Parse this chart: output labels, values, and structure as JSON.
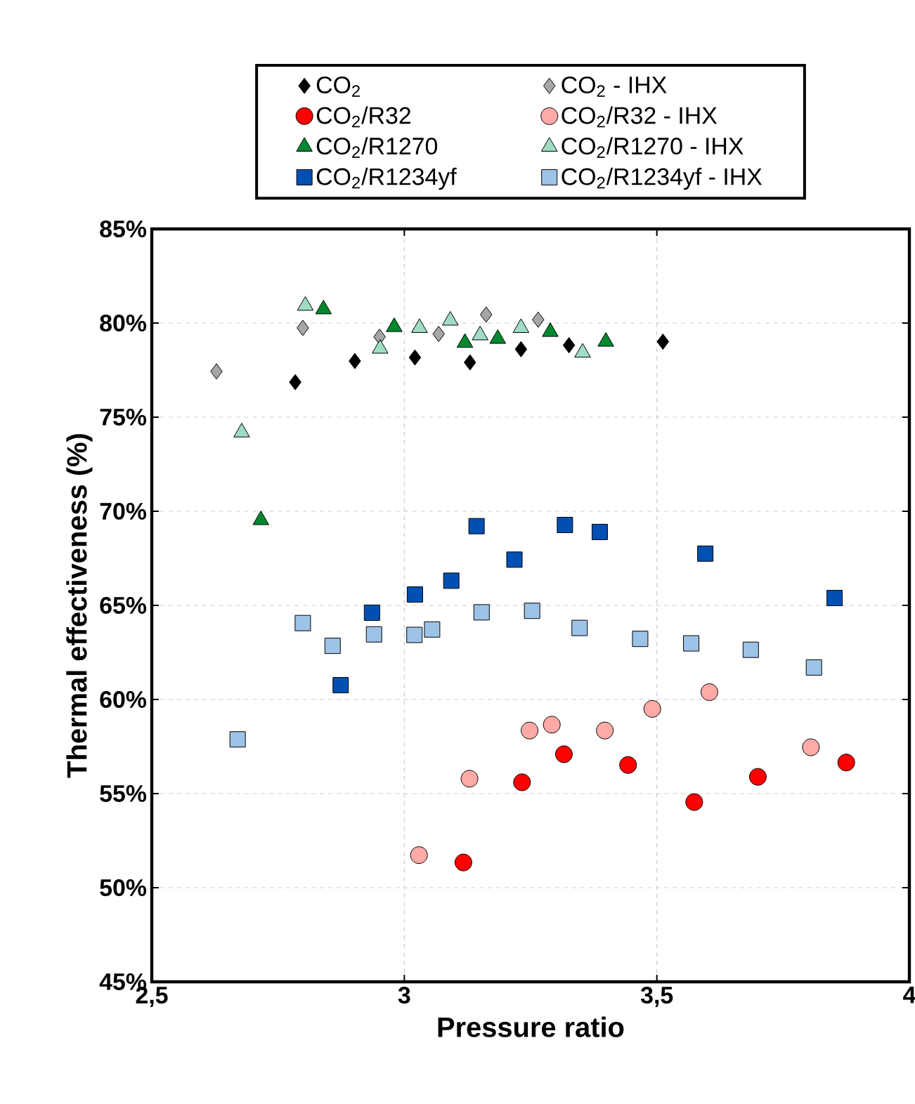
{
  "chart_data": {
    "type": "scatter",
    "xlabel": "Pressure ratio",
    "ylabel": "Thermal effectiveness (%)",
    "xlim": [
      2.5,
      4
    ],
    "ylim": [
      45,
      85
    ],
    "xticks": [
      {
        "value": 2.5,
        "label": "2,5"
      },
      {
        "value": 3,
        "label": "3"
      },
      {
        "value": 3.5,
        "label": "3,5"
      },
      {
        "value": 4,
        "label": "4"
      }
    ],
    "yticks": [
      {
        "value": 45,
        "label": "45%"
      },
      {
        "value": 50,
        "label": "50%"
      },
      {
        "value": 55,
        "label": "55%"
      },
      {
        "value": 60,
        "label": "60%"
      },
      {
        "value": 65,
        "label": "65%"
      },
      {
        "value": 70,
        "label": "70%"
      },
      {
        "value": 75,
        "label": "75%"
      },
      {
        "value": 80,
        "label": "80%"
      },
      {
        "value": 85,
        "label": "85%"
      }
    ],
    "grid": true,
    "legend": "top",
    "series": [
      {
        "name": "CO$_{2}$",
        "color": "#000000",
        "marker": "diamond",
        "x": [
          2.784,
          2.902,
          3.021,
          3.13,
          3.231,
          3.326,
          3.512
        ],
        "values": [
          76.86,
          77.98,
          78.17,
          77.91,
          78.61,
          78.82,
          79.01
        ]
      },
      {
        "name": "CO$_{2}$ - IHX",
        "color": "#a6a6a6",
        "marker": "diamond",
        "x": [
          2.628,
          2.799,
          2.951,
          3.068,
          3.162,
          3.265
        ],
        "values": [
          77.43,
          79.74,
          79.27,
          79.42,
          80.45,
          80.18
        ]
      },
      {
        "name": "CO$_{2}$/R32",
        "color": "#ff0000",
        "marker": "circle",
        "x": [
          3.117,
          3.233,
          3.316,
          3.443,
          3.574,
          3.7,
          3.875
        ],
        "values": [
          51.34,
          55.6,
          57.09,
          56.52,
          54.55,
          55.89,
          56.65
        ]
      },
      {
        "name": "CO$_{2}$/R32 - IHX",
        "color": "#ffaaa6",
        "marker": "circle",
        "x": [
          3.029,
          3.129,
          3.248,
          3.292,
          3.397,
          3.491,
          3.604,
          3.805
        ],
        "values": [
          51.73,
          55.79,
          58.35,
          58.66,
          58.35,
          59.5,
          60.39,
          57.46
        ]
      },
      {
        "name": "CO$_{2}$/R1270",
        "color": "#00882e",
        "marker": "triangle",
        "x": [
          2.716,
          2.84,
          2.98,
          3.12,
          3.185,
          3.289,
          3.399
        ],
        "values": [
          69.53,
          80.73,
          79.79,
          78.95,
          79.16,
          79.53,
          79.01
        ]
      },
      {
        "name": "CO$_{2}$/R1270 - IHX",
        "color": "#9fdcc4",
        "marker": "triangle",
        "x": [
          2.678,
          2.804,
          2.952,
          3.03,
          3.091,
          3.15,
          3.231,
          3.353
        ],
        "values": [
          74.19,
          80.92,
          78.64,
          79.74,
          80.13,
          79.35,
          79.74,
          78.43
        ]
      },
      {
        "name": "CO$_{2}$/R1234yf",
        "color": "#0050b4",
        "marker": "square",
        "x": [
          2.874,
          2.936,
          3.021,
          3.093,
          3.143,
          3.218,
          3.318,
          3.387,
          3.596,
          3.852
        ],
        "values": [
          60.76,
          64.61,
          65.58,
          66.31,
          69.21,
          67.43,
          69.27,
          68.9,
          67.75,
          65.39
        ]
      },
      {
        "name": "CO$_{2}$/R1234yf - IHX",
        "color": "#9dc3e6",
        "marker": "square",
        "x": [
          2.67,
          2.799,
          2.858,
          2.94,
          3.02,
          3.055,
          3.153,
          3.253,
          3.347,
          3.467,
          3.568,
          3.686,
          3.811
        ],
        "values": [
          57.88,
          64.06,
          62.85,
          63.46,
          63.43,
          63.72,
          64.63,
          64.71,
          63.8,
          63.22,
          62.98,
          62.64,
          61.7
        ]
      }
    ]
  }
}
